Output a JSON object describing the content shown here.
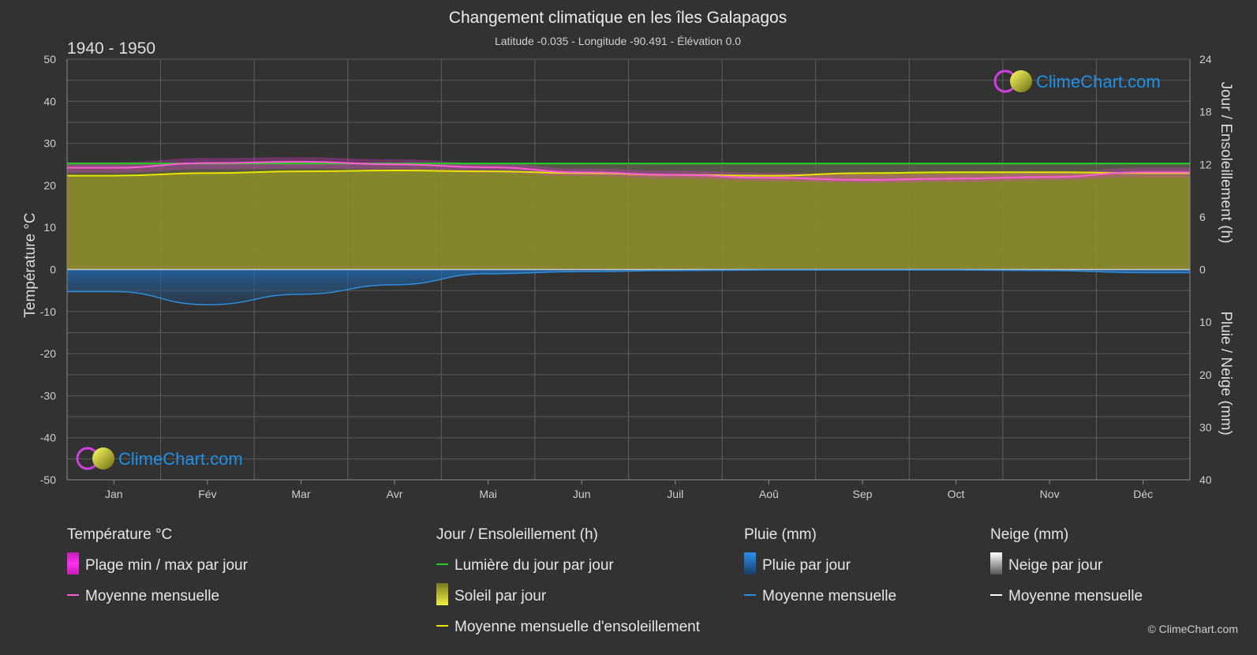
{
  "chart_data": {
    "type": "area",
    "title": "Changement climatique en les îles Galapagos",
    "subtitle": "Latitude -0.035 - Longitude -90.491 - Élévation 0.0",
    "period": "1940 - 1950",
    "categories": [
      "Jan",
      "Fév",
      "Mar",
      "Avr",
      "Mai",
      "Jun",
      "Juil",
      "Aoû",
      "Sep",
      "Oct",
      "Nov",
      "Déc"
    ],
    "ylabel_left": "Température °C",
    "ylabel_right_top": "Jour / Ensoleillement (h)",
    "ylabel_right_bottom": "Pluie / Neige (mm)",
    "ylim_left": [
      -50,
      50
    ],
    "yticks_left": [
      "50",
      "40",
      "30",
      "20",
      "10",
      "0",
      "-10",
      "-20",
      "-30",
      "-40",
      "-50"
    ],
    "right_top_range": [
      0,
      24
    ],
    "yticks_right_top": [
      "24",
      "18",
      "12",
      "6",
      "0"
    ],
    "right_bottom_range": [
      0,
      40
    ],
    "yticks_right_bottom": [
      "10",
      "20",
      "30",
      "40"
    ],
    "grid": true,
    "series": [
      {
        "name": "Lumière du jour par jour",
        "unit": "h",
        "color": "#22cc22",
        "values": [
          12.1,
          12.1,
          12.1,
          12.1,
          12.1,
          12.1,
          12.1,
          12.1,
          12.1,
          12.1,
          12.1,
          12.1
        ]
      },
      {
        "name": "Moyenne mensuelle d'ensoleillement",
        "unit": "h",
        "color": "#e6e600",
        "values": [
          10.7,
          11.0,
          11.2,
          11.3,
          11.2,
          11.0,
          10.8,
          10.7,
          11.0,
          11.1,
          11.1,
          11.0
        ]
      },
      {
        "name": "Moyenne mensuelle",
        "group": "Température °C",
        "unit": "°C",
        "color": "#ff5cd6",
        "values": [
          24.2,
          25.3,
          25.6,
          25.0,
          24.3,
          23.1,
          22.5,
          21.8,
          21.3,
          21.6,
          22.0,
          23.1
        ]
      },
      {
        "name": "Plage min / max par jour",
        "unit": "°C",
        "color": "#d63fc7",
        "min": [
          23.0,
          23.8,
          24.0,
          23.8,
          23.0,
          22.2,
          21.6,
          21.0,
          20.6,
          20.8,
          21.2,
          22.0
        ],
        "max": [
          25.5,
          26.5,
          26.7,
          26.2,
          25.3,
          24.0,
          23.5,
          23.0,
          22.5,
          22.6,
          23.0,
          24.2
        ]
      },
      {
        "name": "Moyenne mensuelle",
        "group": "Pluie (mm)",
        "unit": "mm",
        "color": "#2b8fe0",
        "values": [
          4.2,
          6.7,
          4.7,
          2.9,
          0.8,
          0.4,
          0.2,
          0.1,
          0.1,
          0.1,
          0.2,
          0.6
        ]
      },
      {
        "name": "Moyenne mensuelle",
        "group": "Neige (mm)",
        "unit": "mm",
        "color": "#ffffff",
        "values": [
          0,
          0,
          0,
          0,
          0,
          0,
          0,
          0,
          0,
          0,
          0,
          0
        ]
      }
    ]
  },
  "legend": {
    "groups": [
      {
        "title": "Température °C",
        "items": [
          {
            "label": "Plage min / max par jour",
            "swatch": "box",
            "color": "#e02bd0"
          },
          {
            "label": "Moyenne mensuelle",
            "swatch": "line",
            "color": "#ff5cd6"
          }
        ]
      },
      {
        "title": "Jour / Ensoleillement (h)",
        "items": [
          {
            "label": "Lumière du jour par jour",
            "swatch": "line",
            "color": "#22cc22"
          },
          {
            "label": "Soleil par jour",
            "swatch": "box",
            "color": "#d8d82a"
          },
          {
            "label": "Moyenne mensuelle d'ensoleillement",
            "swatch": "line",
            "color": "#e6e600"
          }
        ]
      },
      {
        "title": "Pluie (mm)",
        "items": [
          {
            "label": "Pluie par jour",
            "swatch": "box",
            "color": "#1e88e5"
          },
          {
            "label": "Moyenne mensuelle",
            "swatch": "line",
            "color": "#2b8fe0"
          }
        ]
      },
      {
        "title": "Neige (mm)",
        "items": [
          {
            "label": "Neige par jour",
            "swatch": "box",
            "color": "#ffffff"
          },
          {
            "label": "Moyenne mensuelle",
            "swatch": "line",
            "color": "#ffffff"
          }
        ]
      }
    ]
  },
  "branding": {
    "logo_text": "ClimeChart.com",
    "copyright": "© ClimeChart.com"
  },
  "colors": {
    "background": "#323232",
    "grid": "#5a5a5a",
    "logo_text": "#1e90e6",
    "sun_fill": "#8a8a2e"
  }
}
